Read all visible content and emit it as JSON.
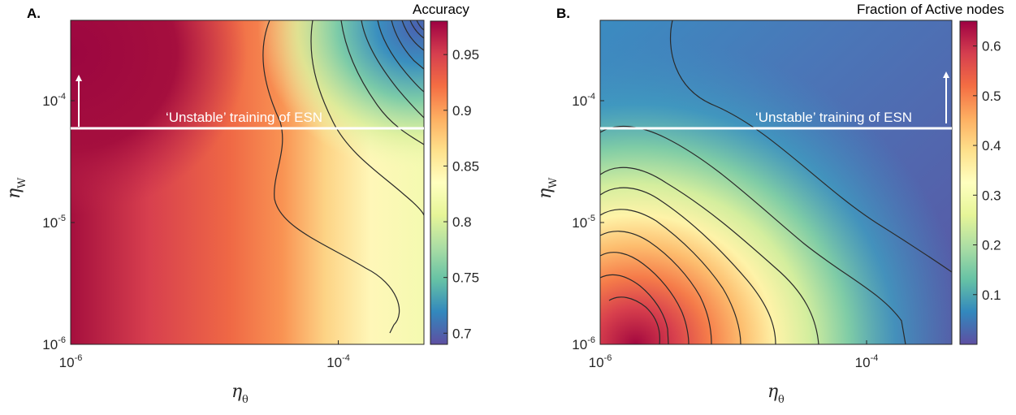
{
  "chart_data": [
    {
      "type": "heatmap",
      "panel_label": "A.",
      "colorbar_title": "Accuracy",
      "xlabel": "η",
      "xlabel_sub": "θ",
      "ylabel": "η",
      "ylabel_sub": "W",
      "x_scale": "log",
      "y_scale": "log",
      "x_ticks": [
        {
          "base": "10",
          "exp": "-6"
        },
        {
          "base": "10",
          "exp": "-4"
        }
      ],
      "y_ticks": [
        {
          "base": "10",
          "exp": "-6"
        },
        {
          "base": "10",
          "exp": "-5"
        },
        {
          "base": "10",
          "exp": "-4"
        }
      ],
      "xlim_log10": [
        -6,
        -3.36
      ],
      "ylim_log10": [
        -6,
        -3.34
      ],
      "colorbar_ticks": [
        "0.95",
        "0.9",
        "0.85",
        "0.8",
        "0.75",
        "0.7"
      ],
      "colorbar_range": [
        0.69,
        0.98
      ],
      "colormap": "spectral",
      "annotation": "‘Unstable’ training of ESN",
      "unstable_threshold_log10": -4.18,
      "arrow_side": "left",
      "contour_levels": [
        0.95,
        0.93,
        0.91,
        0.89,
        0.87,
        0.85,
        0.83,
        0.81,
        0.79,
        0.77
      ],
      "notes_on_values": "Accuracy highest (~0.98) at small eta_theta, decreasing toward large eta_theta / large eta_W (~0.7 top-right)"
    },
    {
      "type": "heatmap",
      "panel_label": "B.",
      "colorbar_title": "Fraction of Active nodes",
      "xlabel": "η",
      "xlabel_sub": "θ",
      "ylabel": "η",
      "ylabel_sub": "W",
      "x_scale": "log",
      "y_scale": "log",
      "x_ticks": [
        {
          "base": "10",
          "exp": "-6"
        },
        {
          "base": "10",
          "exp": "-4"
        }
      ],
      "y_ticks": [
        {
          "base": "10",
          "exp": "-6"
        },
        {
          "base": "10",
          "exp": "-5"
        },
        {
          "base": "10",
          "exp": "-4"
        }
      ],
      "xlim_log10": [
        -6,
        -3.36
      ],
      "ylim_log10": [
        -6,
        -3.34
      ],
      "colorbar_ticks": [
        "0.6",
        "0.5",
        "0.4",
        "0.3",
        "0.2",
        "0.1"
      ],
      "colorbar_range": [
        0.0,
        0.65
      ],
      "colormap": "spectral",
      "annotation": "‘Unstable’ training of ESN",
      "unstable_threshold_log10": -4.18,
      "arrow_side": "right",
      "peak": {
        "x_log10": -5.6,
        "y_log10": -5.95,
        "value": 0.65
      },
      "contour_levels": [
        0.6,
        0.55,
        0.5,
        0.45,
        0.4,
        0.35,
        0.3,
        0.25,
        0.2,
        0.15,
        0.1
      ]
    }
  ]
}
